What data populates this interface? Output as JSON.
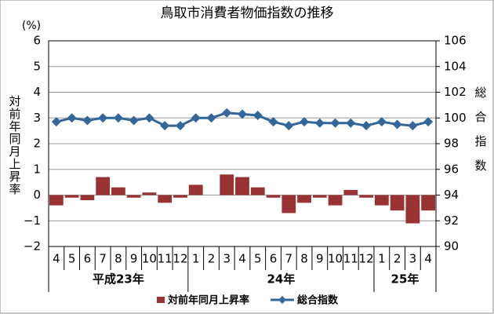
{
  "chart_data": {
    "type": "bar-line",
    "title": "鳥取市消費者物価指数の推移",
    "y_unit": "(%)",
    "y_label": "対前年同月上昇率",
    "y2_label": "総合指数",
    "category_groups": [
      {
        "label": "平成23年",
        "categories": [
          "4",
          "5",
          "6",
          "7",
          "8",
          "9",
          "10",
          "11",
          "12"
        ]
      },
      {
        "label": "24年",
        "categories": [
          "1",
          "2",
          "3",
          "4",
          "5",
          "6",
          "7",
          "8",
          "9",
          "10",
          "11",
          "12"
        ]
      },
      {
        "label": "25年",
        "categories": [
          "1",
          "2",
          "3",
          "4"
        ]
      }
    ],
    "series": [
      {
        "name": "対前年同月上昇率",
        "color": "#993333",
        "type": "bar",
        "axis": "y",
        "values": [
          -0.4,
          -0.1,
          -0.2,
          0.7,
          0.3,
          -0.1,
          0.1,
          -0.3,
          -0.1,
          0.4,
          0.0,
          0.8,
          0.7,
          0.3,
          -0.1,
          -0.7,
          -0.3,
          -0.1,
          -0.4,
          0.2,
          -0.1,
          -0.4,
          -0.6,
          -1.1,
          -0.6
        ]
      },
      {
        "name": "総合指数",
        "color": "#336699",
        "type": "line",
        "axis": "y2",
        "values": [
          99.7,
          100.0,
          99.8,
          100.0,
          100.0,
          99.8,
          100.0,
          99.4,
          99.4,
          100.0,
          100.0,
          100.4,
          100.3,
          100.2,
          99.7,
          99.4,
          99.7,
          99.6,
          99.6,
          99.6,
          99.4,
          99.7,
          99.5,
          99.4,
          99.7
        ]
      }
    ],
    "ylim": [
      -2,
      6
    ],
    "yticks": [
      {
        "value": -2,
        "label": "−2"
      },
      {
        "value": -1,
        "label": "−1"
      },
      0,
      1,
      2,
      3,
      4,
      5,
      6
    ],
    "y2lim": [
      90,
      106
    ],
    "y2ticks": [
      90,
      92,
      94,
      96,
      98,
      100,
      102,
      104,
      106
    ],
    "grid": true,
    "legend": "bottom"
  }
}
